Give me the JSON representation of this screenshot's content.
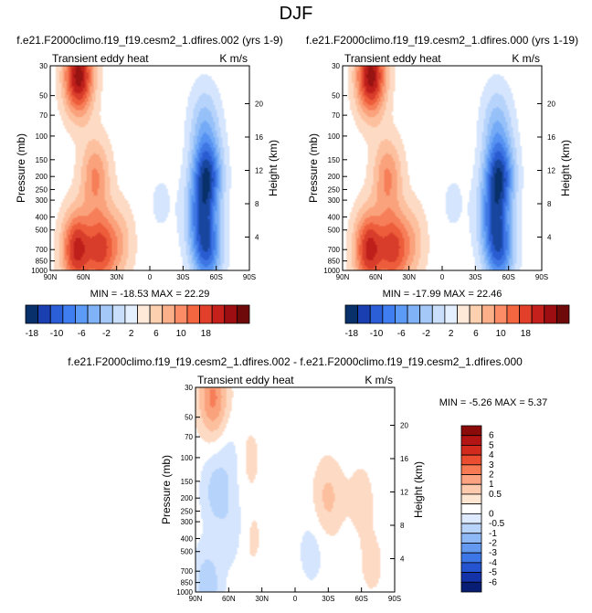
{
  "page_title": "DJF",
  "chart_data": [
    {
      "type": "heatmap",
      "title": "f.e21.F2000climo.f19_f19.cesm2_1.dfires.002 (yrs 1-9)",
      "left_label": "Transient eddy heat",
      "right_label": "K m/s",
      "xlabels": [
        "90N",
        "60N",
        "30N",
        "0",
        "30S",
        "60S",
        "90S"
      ],
      "ylabel": "Pressure (mb)",
      "ylabels": [
        "30",
        "50",
        "70",
        "100",
        "150",
        "200",
        "250",
        "300",
        "400",
        "500",
        "700",
        "850",
        "1000"
      ],
      "y2label": "Height (km)",
      "y2labels": [
        "20",
        "16",
        "12",
        "8",
        "4"
      ],
      "minmax": "MIN = -18.53  MAX = 22.29",
      "features": [
        {
          "lat": 65,
          "logp": 1.55,
          "val": 18
        },
        {
          "lat": 67,
          "logp": 2.85,
          "val": 15
        },
        {
          "lat": 45,
          "logp": 2.85,
          "val": 12
        },
        {
          "lat": 50,
          "logp": 2.3,
          "val": 8
        },
        {
          "lat": 28,
          "logp": 2.8,
          "val": 5
        },
        {
          "lat": -52,
          "logp": 2.3,
          "val": -17
        },
        {
          "lat": -52,
          "logp": 2.85,
          "val": -14
        },
        {
          "lat": -50,
          "logp": 1.9,
          "val": -6
        },
        {
          "lat": -45,
          "logp": 2.6,
          "val": -8
        },
        {
          "lat": -10,
          "logp": 2.5,
          "val": -1.5
        },
        {
          "lat": 5,
          "logp": 1.9,
          "val": 1
        }
      ]
    },
    {
      "type": "heatmap",
      "title": "f.e21.F2000climo.f19_f19.cesm2_1.dfires.000 (yrs 1-19)",
      "left_label": "Transient eddy heat",
      "right_label": "K m/s",
      "xlabels": [
        "90N",
        "60N",
        "30N",
        "0",
        "30S",
        "60S",
        "90S"
      ],
      "ylabel": "Pressure (mb)",
      "ylabels": [
        "30",
        "50",
        "70",
        "100",
        "150",
        "200",
        "250",
        "300",
        "400",
        "500",
        "700",
        "850",
        "1000"
      ],
      "y2label": "Height (km)",
      "y2labels": [
        "20",
        "16",
        "12",
        "8",
        "4"
      ],
      "minmax": "MIN = -17.99  MAX = 22.46",
      "features": [
        {
          "lat": 65,
          "logp": 1.55,
          "val": 18
        },
        {
          "lat": 67,
          "logp": 2.85,
          "val": 15
        },
        {
          "lat": 45,
          "logp": 2.85,
          "val": 12
        },
        {
          "lat": 50,
          "logp": 2.3,
          "val": 8
        },
        {
          "lat": 28,
          "logp": 2.8,
          "val": 5
        },
        {
          "lat": -52,
          "logp": 2.3,
          "val": -17
        },
        {
          "lat": -52,
          "logp": 2.85,
          "val": -14
        },
        {
          "lat": -50,
          "logp": 1.9,
          "val": -6
        },
        {
          "lat": -45,
          "logp": 2.6,
          "val": -8
        },
        {
          "lat": -10,
          "logp": 2.5,
          "val": -1.5
        },
        {
          "lat": 5,
          "logp": 1.9,
          "val": 1
        }
      ]
    },
    {
      "type": "heatmap",
      "title": "f.e21.F2000climo.f19_f19.cesm2_1.dfires.002 - f.e21.F2000climo.f19_f19.cesm2_1.dfires.000",
      "left_label": "Transient eddy heat",
      "right_label": "K m/s",
      "xlabels": [
        "90N",
        "60N",
        "30N",
        "0",
        "30S",
        "60S",
        "90S"
      ],
      "ylabel": "Pressure (mb)",
      "ylabels": [
        "30",
        "50",
        "70",
        "100",
        "150",
        "200",
        "250",
        "300",
        "400",
        "500",
        "700",
        "850",
        "1000"
      ],
      "y2label": "Height (km)",
      "y2labels": [
        "20",
        "16",
        "12",
        "8",
        "4"
      ],
      "minmax": "MIN = -5.26  MAX =  5.37",
      "features": [
        {
          "lat": 75,
          "logp": 1.55,
          "val": 2.5
        },
        {
          "lat": 72,
          "logp": 2.25,
          "val": -1.3
        },
        {
          "lat": 55,
          "logp": 2.0,
          "val": -0.8
        },
        {
          "lat": 55,
          "logp": 2.55,
          "val": -0.8
        },
        {
          "lat": 45,
          "logp": 2.0,
          "val": 0.8
        },
        {
          "lat": 42,
          "logp": 2.6,
          "val": 0.6
        },
        {
          "lat": 80,
          "logp": 2.95,
          "val": -1.5
        },
        {
          "lat": -30,
          "logp": 2.3,
          "val": 1.2
        },
        {
          "lat": -60,
          "logp": 2.3,
          "val": 0.6
        },
        {
          "lat": -70,
          "logp": 2.8,
          "val": 0.5
        },
        {
          "lat": -15,
          "logp": 2.7,
          "val": -0.6
        }
      ]
    }
  ],
  "colorbar_horizontal": {
    "labels": [
      "-18",
      "-10",
      "-6",
      "-2",
      "2",
      "6",
      "10",
      "18"
    ],
    "colors": [
      "#08306b",
      "#1a3fb0",
      "#2b5fd8",
      "#3f7ef0",
      "#5b9af5",
      "#7fb2f7",
      "#a4c9f9",
      "#c8defb",
      "#e4efff",
      "#fee9d8",
      "#fdd0b0",
      "#fcb08a",
      "#fb8c65",
      "#f36640",
      "#e2402a",
      "#c5201b",
      "#9d0e12",
      "#6f0a0a"
    ]
  },
  "colorbar_vertical": {
    "labels": [
      "6",
      "5",
      "4",
      "3",
      "2",
      "1",
      "0.5",
      "0",
      "-0.5",
      "-1",
      "-2",
      "-3",
      "-4",
      "-5",
      "-6"
    ],
    "colors": [
      "#8b0a0a",
      "#b31414",
      "#d32a1e",
      "#ea4d2f",
      "#f77a55",
      "#fca482",
      "#fdcaae",
      "#fee6d2",
      "#ffffff",
      "#ddeaff",
      "#b9d4fb",
      "#8fb9f6",
      "#6499f0",
      "#3d76e6",
      "#2454d0",
      "#1433a8",
      "#081e75"
    ]
  }
}
